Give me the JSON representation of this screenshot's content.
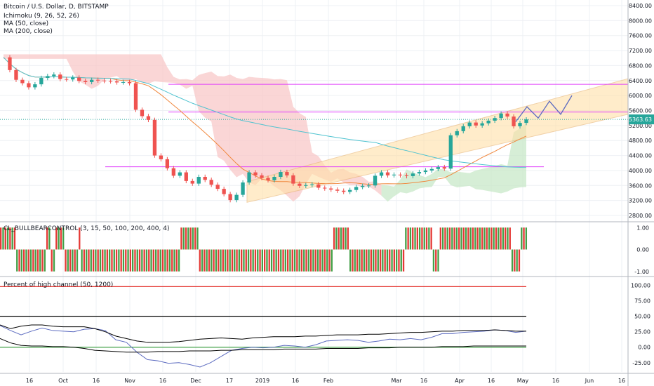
{
  "chart_data": [
    {
      "type": "candlestick",
      "title": "Bitcoin / U.S. Dollar, D, BITSTAMP",
      "legend": [
        "Ichimoku (9, 26, 52, 26)",
        "MA (50, close)",
        "MA (200, close)"
      ],
      "last_price_label": "5363.63",
      "y_ticks": [
        "8400.00",
        "8000.00",
        "7600.00",
        "7200.00",
        "6800.00",
        "6400.00",
        "6000.00",
        "5600.00",
        "5200.00",
        "4800.00",
        "4400.00",
        "4000.00",
        "3600.00",
        "3200.00",
        "2800.00"
      ],
      "ylim": [
        2650,
        8550
      ],
      "x_ticks": [
        "16",
        "Oct",
        "16",
        "Nov",
        "16",
        "Dec",
        "17",
        "2019",
        "16",
        "Feb",
        "Mar",
        "16",
        "Apr",
        "16",
        "May",
        "16",
        "Jun",
        "16"
      ],
      "close_series": [
        7020,
        6680,
        6420,
        6330,
        6220,
        6300,
        6470,
        6520,
        6560,
        6440,
        6430,
        6480,
        6390,
        6360,
        6420,
        6400,
        6390,
        6380,
        6350,
        6360,
        6330,
        5620,
        5450,
        5350,
        4400,
        4300,
        4060,
        3860,
        3950,
        3720,
        3650,
        3830,
        3750,
        3620,
        3510,
        3370,
        3210,
        3350,
        3680,
        3950,
        3870,
        3800,
        3740,
        3830,
        3960,
        3870,
        3650,
        3590,
        3610,
        3630,
        3540,
        3520,
        3490,
        3460,
        3430,
        3480,
        3560,
        3590,
        3600,
        3860,
        3950,
        3870,
        3890,
        3870,
        3850,
        3920,
        3960,
        4000,
        4040,
        4090,
        4050,
        4940,
        5050,
        5180,
        5280,
        5200,
        5260,
        5330,
        5400,
        5520,
        5440,
        5180,
        5270,
        5363
      ],
      "candle_up_color": "#26a69a",
      "candle_down_color": "#ef5350",
      "ma50_color": "#f0883e",
      "ma200_color": "#4fc3d0",
      "cloud_bear_color": "#f8c8c8",
      "cloud_bull_color": "#c8e8c8",
      "horizontal_levels": [
        6300,
        5560,
        4100
      ],
      "level_color": "#e040fb",
      "channel": {
        "start_price_low": 3150,
        "end_price_low": 5500,
        "start_price_high": 3700,
        "end_price_high": 6450
      },
      "projected_path": [
        5300,
        5700,
        5400,
        5850,
        5500,
        6000
      ]
    },
    {
      "type": "histogram",
      "title": "CL_BULLBEARCONTROL (3, 15, 50, 100, 200, 400, 4)",
      "y_ticks": [
        "1.00",
        "0.00",
        "-1.00"
      ],
      "ylim": [
        -1.2,
        1.2
      ],
      "values": [
        1,
        1,
        1,
        1,
        1,
        1,
        1,
        -1,
        -1,
        -1,
        -1,
        -1,
        -1,
        -1,
        -1,
        -1,
        -1,
        -1,
        -1,
        -1,
        1,
        1,
        -1,
        -1,
        1,
        1,
        1,
        1,
        -1,
        -1,
        -1,
        -1,
        -1,
        -1,
        1,
        -1,
        -1,
        -1,
        -1,
        -1,
        -1,
        -1,
        -1,
        -1,
        -1,
        -1,
        -1,
        -1,
        -1,
        -1,
        -1,
        -1,
        -1,
        -1,
        -1,
        -1,
        -1,
        -1,
        -1,
        -1,
        -1,
        -1,
        -1,
        -1,
        -1,
        -1,
        -1,
        -1,
        -1,
        -1,
        -1,
        -1,
        -1,
        -1,
        -1,
        -1,
        -1,
        -1,
        1,
        1,
        1,
        1,
        1,
        1,
        1,
        1,
        -1,
        -1,
        -1,
        -1,
        -1,
        -1,
        -1,
        -1,
        -1,
        -1,
        -1,
        -1,
        -1,
        -1,
        -1,
        -1,
        -1,
        -1,
        -1,
        -1,
        -1,
        -1,
        -1,
        -1,
        -1,
        -1,
        -1,
        -1,
        -1,
        -1,
        -1,
        -1,
        -1,
        -1,
        -1,
        -1,
        -1,
        -1,
        -1,
        -1,
        -1,
        -1,
        -1,
        -1,
        -1,
        -1,
        -1,
        -1,
        -1,
        -1,
        -1,
        -1,
        -1,
        -1,
        -1,
        -1,
        -1,
        -1,
        1,
        1,
        1,
        1,
        1,
        1,
        1,
        -1,
        -1,
        -1,
        -1,
        -1,
        -1,
        -1,
        -1,
        -1,
        -1,
        -1,
        -1,
        -1,
        -1,
        -1,
        -1,
        -1,
        -1,
        -1,
        -1,
        -1,
        -1,
        -1,
        -1,
        1,
        1,
        1,
        1,
        1,
        1,
        1,
        1,
        1,
        1,
        1,
        1,
        -1,
        -1,
        -1,
        1,
        1,
        1,
        1,
        1,
        1,
        1,
        1,
        1,
        1,
        1,
        1,
        1,
        1,
        1,
        1,
        1,
        1,
        1,
        1,
        1,
        1,
        1,
        1,
        1,
        1,
        1,
        1,
        1,
        1,
        1,
        -1,
        -1,
        -1,
        -1,
        1,
        1,
        1
      ],
      "up_color": "#43a047",
      "down_color": "#e53935"
    },
    {
      "type": "line",
      "title": "Percent of high channel (50, 1200)",
      "y_ticks": [
        "100.00",
        "75.00",
        "50.00",
        "25.00",
        "0.00",
        "-25.00"
      ],
      "ylim": [
        -40,
        112
      ],
      "reference_lines": [
        {
          "value": 98,
          "color": "#e53935"
        },
        {
          "value": 50,
          "color": "#000000"
        },
        {
          "value": 0,
          "color": "#43a047"
        }
      ],
      "series": [
        {
          "color": "#5c6bc0",
          "values": [
            35,
            27,
            20,
            26,
            31,
            27,
            26,
            25,
            29,
            30,
            27,
            12,
            8,
            -8,
            -20,
            -22,
            -26,
            -25,
            -28,
            -32,
            -25,
            -15,
            -5,
            -2,
            0,
            -1,
            0,
            3,
            2,
            0,
            4,
            10,
            11,
            12,
            11,
            8,
            10,
            13,
            12,
            14,
            12,
            16,
            22,
            22,
            24,
            25,
            26,
            28,
            27,
            24,
            26
          ]
        },
        {
          "color": "#000000",
          "values": [
            36,
            30,
            34,
            36,
            36,
            34,
            33,
            33,
            33,
            30,
            25,
            18,
            14,
            10,
            8,
            8,
            8,
            9,
            11,
            13,
            14,
            15,
            14,
            13,
            15,
            16,
            17,
            17,
            17,
            18,
            18,
            19,
            20,
            20,
            20,
            21,
            21,
            22,
            23,
            24,
            24,
            25,
            26,
            26,
            27,
            27,
            27,
            28,
            27,
            26,
            26
          ]
        },
        {
          "color": "#000000",
          "values": [
            14,
            7,
            3,
            2,
            2,
            1,
            1,
            0,
            -2,
            -5,
            -6,
            -7,
            -8,
            -8,
            -8,
            -7,
            -7,
            -7,
            -6,
            -6,
            -6,
            -5,
            -5,
            -4,
            -4,
            -4,
            -4,
            -3,
            -3,
            -3,
            -3,
            -2,
            -2,
            -2,
            -2,
            -1,
            -1,
            -1,
            0,
            0,
            0,
            0,
            1,
            1,
            1,
            2,
            2,
            2,
            2,
            2,
            2
          ]
        }
      ]
    }
  ]
}
